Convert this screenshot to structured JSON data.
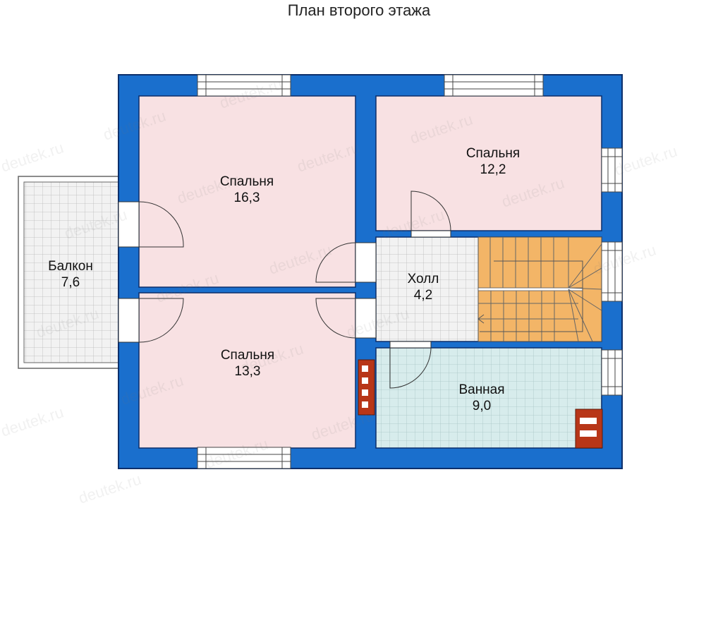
{
  "title": "План второго этажа",
  "watermark": "deutek.ru",
  "colors": {
    "wall": "#1a6fcd",
    "wall_dark": "#0c2f6b",
    "bedroom": "#f8e1e3",
    "tile": "#eeeeee",
    "bath": "#d6eaea",
    "stairs": "#f3b567",
    "chimney": "#b83618"
  },
  "rooms": [
    {
      "id": "bedroom-1",
      "name": "Спальня",
      "area": "16,3"
    },
    {
      "id": "bedroom-2",
      "name": "Спальня",
      "area": "12,2"
    },
    {
      "id": "bedroom-3",
      "name": "Спальня",
      "area": "13,3"
    },
    {
      "id": "hall",
      "name": "Холл",
      "area": "4,2"
    },
    {
      "id": "bathroom",
      "name": "Ванная",
      "area": "9,0"
    },
    {
      "id": "balcony",
      "name": "Балкон",
      "area": "7,6"
    }
  ]
}
